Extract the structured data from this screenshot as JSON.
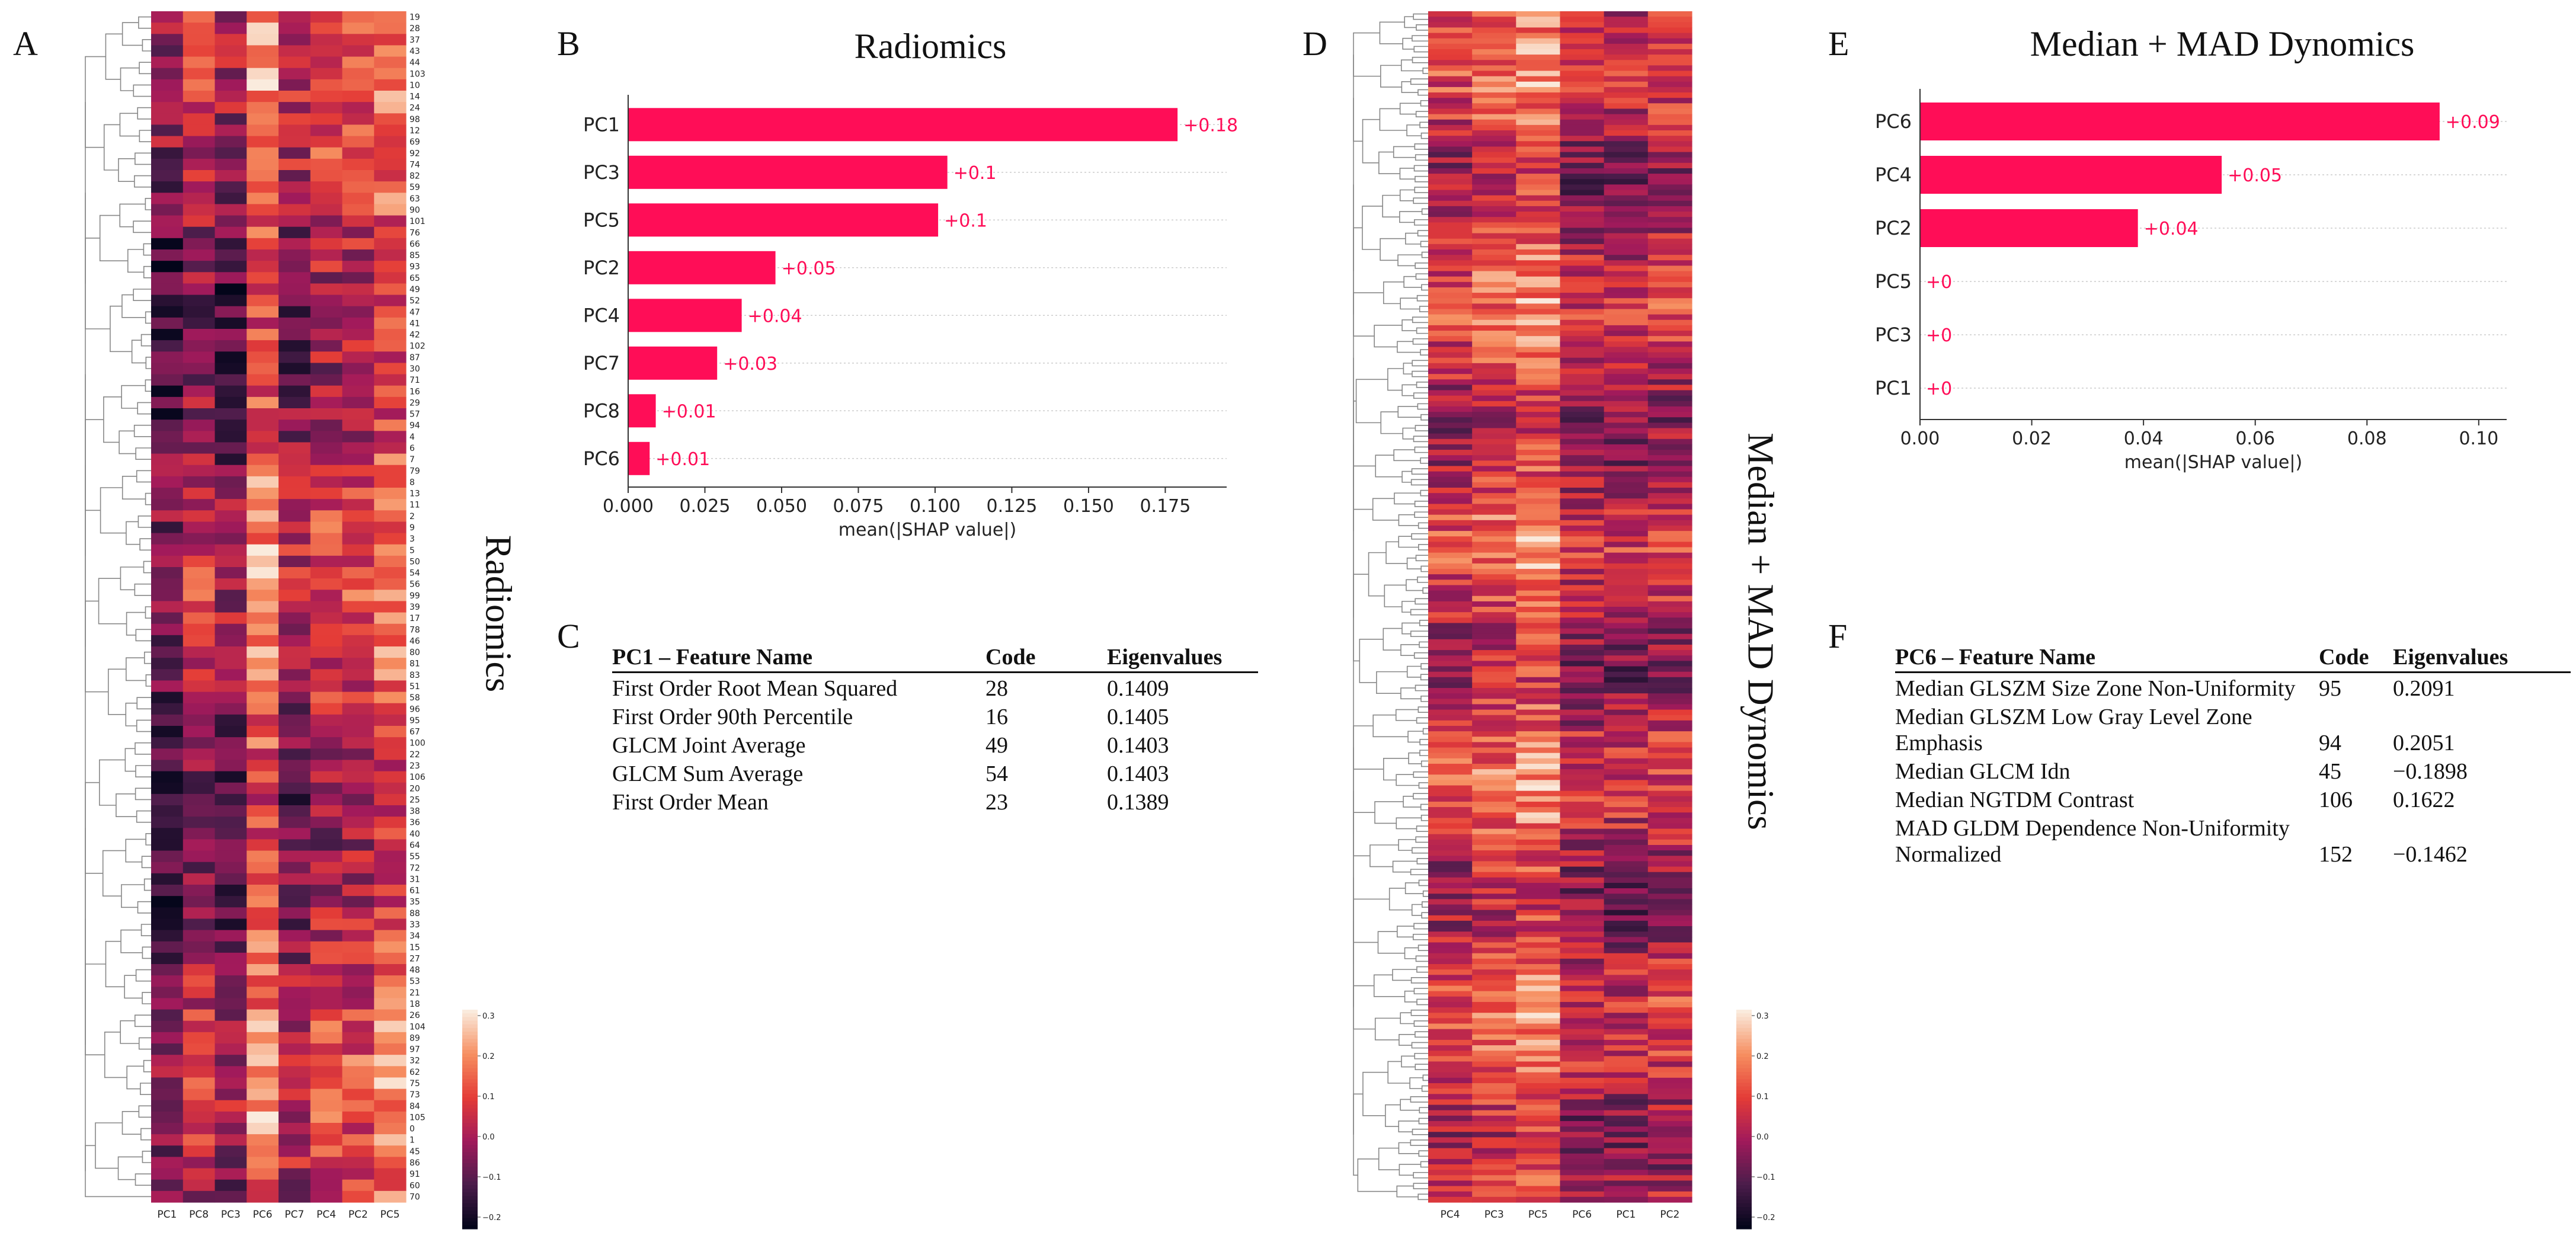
{
  "panels": {
    "A": {
      "letter": "A",
      "title": "Radiomics",
      "columns": [
        "PC1",
        "PC8",
        "PC3",
        "PC6",
        "PC7",
        "PC4",
        "PC2",
        "PC5"
      ],
      "rows": [
        "19",
        "28",
        "37",
        "43",
        "44",
        "103",
        "10",
        "14",
        "24",
        "98",
        "12",
        "69",
        "92",
        "74",
        "82",
        "59",
        "63",
        "90",
        "101",
        "76",
        "66",
        "85",
        "93",
        "65",
        "49",
        "52",
        "47",
        "41",
        "42",
        "102",
        "87",
        "30",
        "71",
        "16",
        "29",
        "57",
        "94",
        "4",
        "6",
        "7",
        "79",
        "8",
        "13",
        "11",
        "2",
        "9",
        "3",
        "5",
        "50",
        "54",
        "56",
        "99",
        "39",
        "17",
        "78",
        "46",
        "80",
        "81",
        "83",
        "51",
        "58",
        "96",
        "95",
        "67",
        "100",
        "22",
        "23",
        "106",
        "20",
        "25",
        "38",
        "36",
        "40",
        "64",
        "55",
        "72",
        "31",
        "61",
        "35",
        "88",
        "33",
        "34",
        "15",
        "27",
        "48",
        "53",
        "21",
        "18",
        "26",
        "104",
        "89",
        "97",
        "32",
        "62",
        "75",
        "73",
        "84",
        "105",
        "0",
        "1",
        "45",
        "86",
        "91",
        "60",
        "70"
      ],
      "colorbar_ticks": [
        "0.3",
        "0.2",
        "0.1",
        "0.0",
        "−0.1",
        "−0.2"
      ]
    },
    "B": {
      "letter": "B",
      "chart_data": {
        "type": "bar",
        "title": "Radiomics",
        "categories": [
          "PC1",
          "PC3",
          "PC5",
          "PC2",
          "PC4",
          "PC7",
          "PC8",
          "PC6"
        ],
        "values": [
          0.179,
          0.104,
          0.101,
          0.048,
          0.037,
          0.029,
          0.009,
          0.007
        ],
        "value_labels": [
          "+0.18",
          "+0.1",
          "+0.1",
          "+0.05",
          "+0.04",
          "+0.03",
          "+0.01",
          "+0.01"
        ],
        "xlabel": "mean(|SHAP value|)",
        "xlim": [
          0,
          0.195
        ],
        "xticks": [
          0,
          0.025,
          0.05,
          0.075,
          0.1,
          0.125,
          0.15,
          0.175
        ],
        "xtick_labels": [
          "0.000",
          "0.025",
          "0.050",
          "0.075",
          "0.100",
          "0.125",
          "0.150",
          "0.175"
        ],
        "bar_color": "#ff0d57"
      }
    },
    "C": {
      "letter": "C",
      "headers": [
        "PC1 – Feature Name",
        "Code",
        "Eigenvalues"
      ],
      "rows": [
        {
          "name": "First Order Root Mean Squared",
          "code": "28",
          "eig": "0.1409"
        },
        {
          "name": "First Order 90th Percentile",
          "code": "16",
          "eig": "0.1405"
        },
        {
          "name": "GLCM Joint Average",
          "code": "49",
          "eig": "0.1403"
        },
        {
          "name": "GLCM Sum Average",
          "code": "54",
          "eig": "0.1403"
        },
        {
          "name": "First Order Mean",
          "code": "23",
          "eig": "0.1389"
        }
      ]
    },
    "D": {
      "letter": "D",
      "title": "Median + MAD Dynomics",
      "columns": [
        "PC4",
        "PC3",
        "PC5",
        "PC6",
        "PC1",
        "PC2"
      ],
      "colorbar_ticks": [
        "0.3",
        "0.2",
        "0.1",
        "0.0",
        "−0.1",
        "−0.2"
      ]
    },
    "E": {
      "letter": "E",
      "chart_data": {
        "type": "bar",
        "title": "Median + MAD Dynomics",
        "categories": [
          "PC6",
          "PC4",
          "PC2",
          "PC5",
          "PC3",
          "PC1"
        ],
        "values": [
          0.093,
          0.054,
          0.039,
          0,
          0,
          0
        ],
        "value_labels": [
          "+0.09",
          "+0.05",
          "+0.04",
          "+0",
          "+0",
          "+0"
        ],
        "xlabel": "mean(|SHAP value|)",
        "xlim": [
          0,
          0.105
        ],
        "xticks": [
          0,
          0.02,
          0.04,
          0.06,
          0.08,
          0.1
        ],
        "xtick_labels": [
          "0.00",
          "0.02",
          "0.04",
          "0.06",
          "0.08",
          "0.10"
        ],
        "bar_color": "#ff0d57"
      }
    },
    "F": {
      "letter": "F",
      "headers": [
        "PC6 – Feature Name",
        "Code",
        "Eigenvalues"
      ],
      "rows": [
        {
          "name": "Median GLSZM Size Zone Non-Uniformity",
          "code": "95",
          "eig": "0.2091"
        },
        {
          "name": "Median GLSZM Low Gray Level Zone Emphasis",
          "code": "94",
          "eig": "0.2051"
        },
        {
          "name": "Median GLCM Idn",
          "code": "45",
          "eig": "−0.1898"
        },
        {
          "name": "Median NGTDM Contrast",
          "code": "106",
          "eig": "0.1622"
        },
        {
          "name": "MAD GLDM Dependence Non-Uniformity Normalized",
          "code": "152",
          "eig": "−0.1462"
        }
      ]
    }
  }
}
